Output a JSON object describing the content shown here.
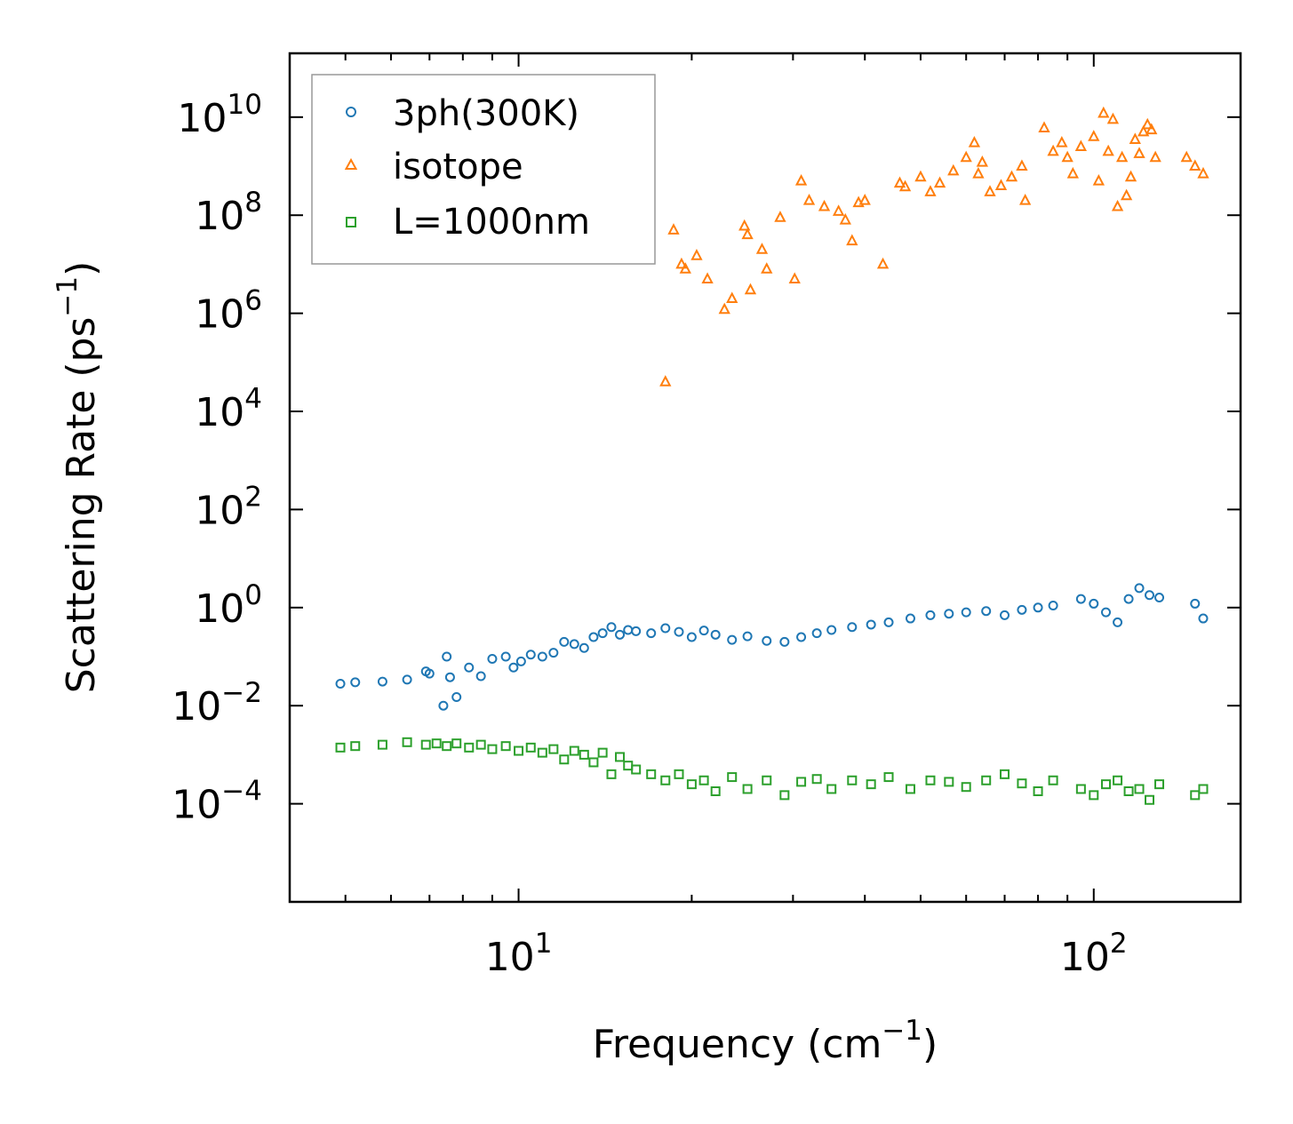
{
  "chart_data": {
    "type": "scatter",
    "title": "",
    "xlabel": {
      "base": "Frequency (cm",
      "sup": "−1",
      "tail": ")"
    },
    "ylabel": {
      "base": "Scattering Rate (ps",
      "sup": "−1",
      "tail": ")"
    },
    "xscale": "log",
    "yscale": "log",
    "xlim": [
      4.0,
      180.0
    ],
    "ylim": [
      1e-06,
      200000000000
    ],
    "x_ticks": [
      {
        "value": 10,
        "base": "10",
        "exp": "1"
      },
      {
        "value": 100,
        "base": "10",
        "exp": "2"
      }
    ],
    "y_ticks": [
      {
        "value": 0.0001,
        "base": "10",
        "exp": "−4"
      },
      {
        "value": 0.01,
        "base": "10",
        "exp": "−2"
      },
      {
        "value": 1,
        "base": "10",
        "exp": "0"
      },
      {
        "value": 100,
        "base": "10",
        "exp": "2"
      },
      {
        "value": 10000,
        "base": "10",
        "exp": "4"
      },
      {
        "value": 1000000,
        "base": "10",
        "exp": "6"
      },
      {
        "value": 100000000,
        "base": "10",
        "exp": "8"
      },
      {
        "value": 10000000000,
        "base": "10",
        "exp": "10"
      }
    ],
    "legend": {
      "position": "top-left"
    },
    "series": [
      {
        "name": "3ph(300K)",
        "marker": "circle",
        "color": "#1f77b4",
        "x": [
          4.9,
          5.2,
          5.8,
          6.4,
          6.9,
          7.0,
          7.4,
          7.5,
          7.6,
          7.8,
          8.2,
          8.6,
          9.0,
          9.5,
          9.8,
          10.1,
          10.5,
          11.0,
          11.5,
          12.0,
          12.5,
          13.0,
          13.5,
          14.0,
          14.5,
          15.0,
          15.5,
          16.0,
          17.0,
          18.0,
          19.0,
          20.0,
          21.0,
          22.0,
          23.5,
          25.0,
          27.0,
          29.0,
          31.0,
          33.0,
          35.0,
          38.0,
          41.0,
          44.0,
          48.0,
          52.0,
          56.0,
          60.0,
          65.0,
          70.0,
          75.0,
          80.0,
          85.0,
          95.0,
          100.0,
          105.0,
          110.0,
          115.0,
          120.0,
          125.0,
          130.0,
          150.0,
          155.0
        ],
        "y": [
          0.028,
          0.03,
          0.031,
          0.034,
          0.05,
          0.045,
          0.01,
          0.1,
          0.038,
          0.015,
          0.06,
          0.04,
          0.09,
          0.1,
          0.06,
          0.08,
          0.11,
          0.1,
          0.12,
          0.2,
          0.18,
          0.15,
          0.25,
          0.3,
          0.4,
          0.28,
          0.35,
          0.33,
          0.3,
          0.38,
          0.32,
          0.25,
          0.34,
          0.28,
          0.22,
          0.26,
          0.21,
          0.2,
          0.25,
          0.3,
          0.35,
          0.4,
          0.45,
          0.5,
          0.6,
          0.7,
          0.75,
          0.8,
          0.85,
          0.7,
          0.9,
          1.0,
          1.1,
          1.5,
          1.2,
          0.8,
          0.5,
          1.5,
          2.5,
          1.8,
          1.6,
          1.2,
          0.6
        ]
      },
      {
        "name": "isotope",
        "marker": "triangle",
        "color": "#ff7f0e",
        "x": [
          18.0,
          18.6,
          19.2,
          19.5,
          20.4,
          21.3,
          22.8,
          23.5,
          24.7,
          25.0,
          25.3,
          26.5,
          27.0,
          28.5,
          30.2,
          31.0,
          32.0,
          34.0,
          36.0,
          37.0,
          38.0,
          39.0,
          40.0,
          43.0,
          46.0,
          47.0,
          50.0,
          52.0,
          54.0,
          57.0,
          60.0,
          62.0,
          63.0,
          64.0,
          66.0,
          69.0,
          72.0,
          75.0,
          76.0,
          82.0,
          85.0,
          88.0,
          90.0,
          92.0,
          95.0,
          100.0,
          102.0,
          104.0,
          106.0,
          108.0,
          110.0,
          112.0,
          114.0,
          116.0,
          118.0,
          120.0,
          122.0,
          124.0,
          126.0,
          128.0,
          145.0,
          150.0,
          155.0
        ],
        "y": [
          40000,
          50000000,
          10000000,
          8000000,
          15000000,
          5000000,
          1200000,
          2000000,
          60000000,
          40000000,
          3000000,
          20000000,
          8000000,
          90000000,
          5000000,
          500000000,
          200000000,
          150000000,
          120000000,
          80000000,
          30000000,
          180000000,
          200000000,
          10000000,
          450000000,
          380000000,
          600000000,
          300000000,
          450000000,
          800000000,
          1500000000,
          3000000000,
          700000000,
          1200000000,
          300000000,
          400000000,
          600000000,
          1000000000,
          200000000,
          6000000000,
          2000000000,
          3000000000,
          1500000000,
          700000000,
          2500000000,
          4000000000,
          500000000,
          12000000000,
          2000000000,
          9000000000,
          150000000,
          1500000000,
          250000000,
          600000000,
          3500000000,
          1800000000,
          5000000000,
          7000000000,
          5500000000,
          1500000000,
          1500000000,
          1000000000,
          700000000
        ]
      },
      {
        "name": "L=1000nm",
        "marker": "square",
        "color": "#2ca02c",
        "x": [
          4.9,
          5.2,
          5.8,
          6.4,
          6.9,
          7.2,
          7.5,
          7.8,
          8.2,
          8.6,
          9.0,
          9.5,
          10.0,
          10.5,
          11.0,
          11.5,
          12.0,
          12.5,
          13.0,
          13.5,
          14.0,
          14.5,
          15.0,
          15.5,
          16.0,
          17.0,
          18.0,
          19.0,
          20.0,
          21.0,
          22.0,
          23.5,
          25.0,
          27.0,
          29.0,
          31.0,
          33.0,
          35.0,
          38.0,
          41.0,
          44.0,
          48.0,
          52.0,
          56.0,
          60.0,
          65.0,
          70.0,
          75.0,
          80.0,
          85.0,
          95.0,
          100.0,
          105.0,
          110.0,
          115.0,
          120.0,
          125.0,
          130.0,
          150.0,
          155.0
        ],
        "y": [
          0.0014,
          0.0015,
          0.0016,
          0.0018,
          0.0016,
          0.0017,
          0.0015,
          0.0017,
          0.0014,
          0.0016,
          0.0013,
          0.0015,
          0.0012,
          0.0014,
          0.0011,
          0.0013,
          0.0008,
          0.0012,
          0.001,
          0.0007,
          0.0011,
          0.0004,
          0.0009,
          0.0006,
          0.0005,
          0.0004,
          0.0003,
          0.0004,
          0.00025,
          0.0003,
          0.00018,
          0.00035,
          0.0002,
          0.0003,
          0.00015,
          0.00028,
          0.00032,
          0.0002,
          0.0003,
          0.00025,
          0.00035,
          0.0002,
          0.0003,
          0.00028,
          0.00022,
          0.0003,
          0.0004,
          0.00026,
          0.00018,
          0.0003,
          0.0002,
          0.00015,
          0.00025,
          0.0003,
          0.00018,
          0.0002,
          0.00012,
          0.00025,
          0.00015,
          0.0002
        ]
      }
    ]
  }
}
